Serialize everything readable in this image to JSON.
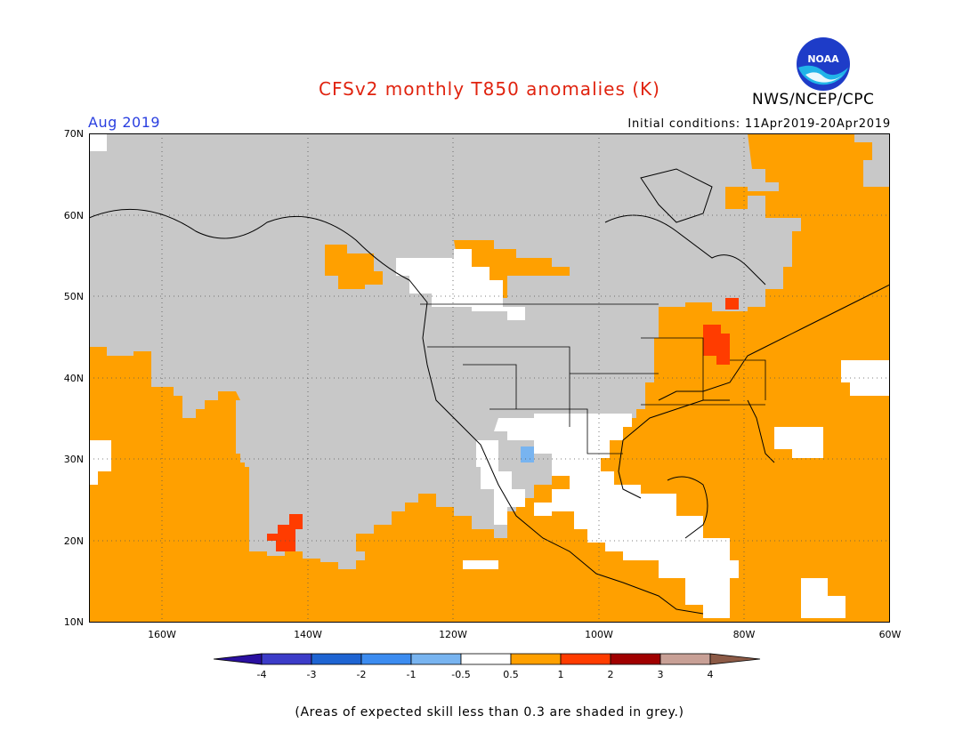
{
  "title": "CFSv2 monthly T850 anomalies (K)",
  "agency": "NWS/NCEP/CPC",
  "logo_text": "NOAA",
  "valid_month": "Aug 2019",
  "initial_conditions": "Initial conditions: 11Apr2019-20Apr2019",
  "footnote": "(Areas of expected skill less than 0.3 are shaded in grey.)",
  "map": {
    "region": "North America and adjacent oceans",
    "latitudes": [
      "10N",
      "20N",
      "30N",
      "40N",
      "50N",
      "60N",
      "70N"
    ],
    "longitudes": [
      "160W",
      "140W",
      "120W",
      "100W",
      "80W",
      "60W"
    ],
    "grid": "dotted",
    "low_skill_color": "#c8c8c8",
    "land_outline_color": "#000000"
  },
  "colorbar": {
    "labels": [
      "-4",
      "-3",
      "-2",
      "-1",
      "-0.5",
      "0.5",
      "1",
      "2",
      "3",
      "4"
    ],
    "colors": [
      "#2a10a0",
      "#3c3cc8",
      "#1e64d2",
      "#3c8cf0",
      "#78b4f0",
      "#ffffff",
      "#ffa000",
      "#ff3c00",
      "#a00000",
      "#c8a096",
      "#8c5a46"
    ]
  }
}
